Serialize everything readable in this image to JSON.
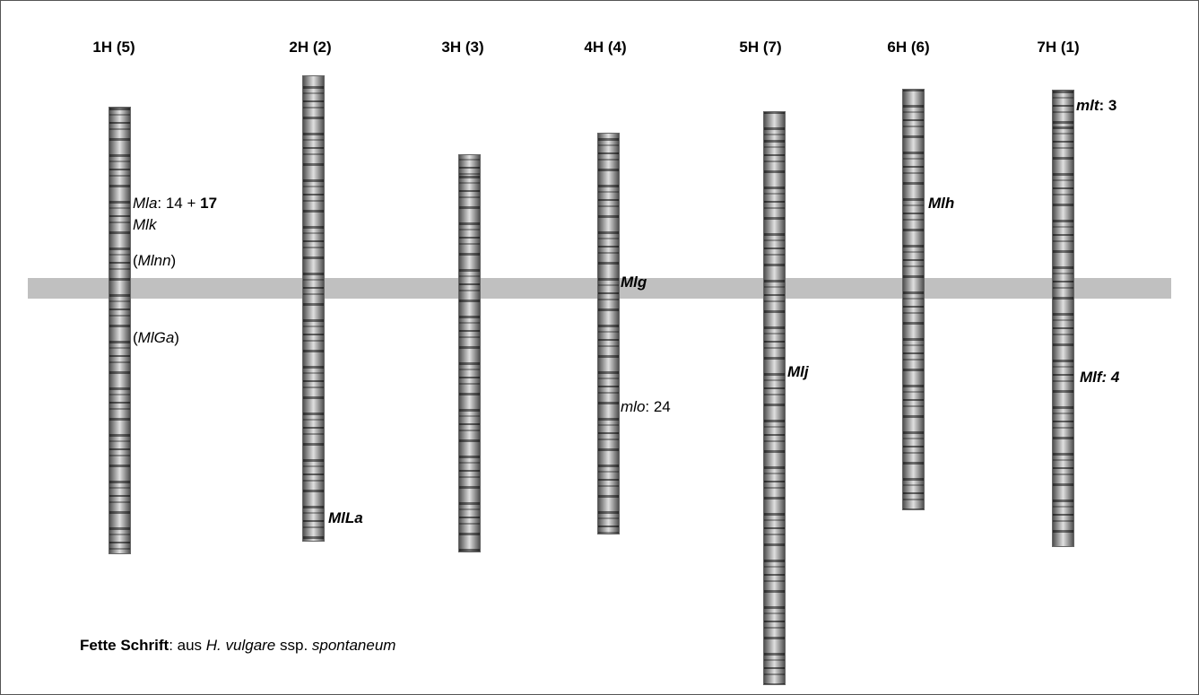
{
  "chromosomes": [
    {
      "label": "1H (5)"
    },
    {
      "label": "2H (2)"
    },
    {
      "label": "3H (3)"
    },
    {
      "label": "4H (4)"
    },
    {
      "label": "5H (7)"
    },
    {
      "label": "6H (6)"
    },
    {
      "label": "7H (1)"
    }
  ],
  "genes": [
    {
      "parts": [
        "Mla",
        ": 14 + ",
        "17"
      ]
    },
    {
      "parts": [
        "Mlk"
      ]
    },
    {
      "parts": [
        "(",
        "Mlnn",
        ")"
      ]
    },
    {
      "parts": [
        "(",
        "MlGa",
        ")"
      ]
    },
    {
      "parts": [
        "MlLa"
      ]
    },
    {
      "parts": [
        "Mlg"
      ]
    },
    {
      "parts": [
        "mlo",
        ": 24"
      ]
    },
    {
      "parts": [
        "Mlj"
      ]
    },
    {
      "parts": [
        "Mlh"
      ]
    },
    {
      "parts": [
        "mlt",
        ": 3"
      ]
    },
    {
      "parts": [
        "Mlf: 4"
      ]
    }
  ],
  "footnote": {
    "parts": [
      "Fette Schrift",
      ": aus ",
      "H. vulgare",
      " ssp. ",
      "spontaneum"
    ]
  }
}
